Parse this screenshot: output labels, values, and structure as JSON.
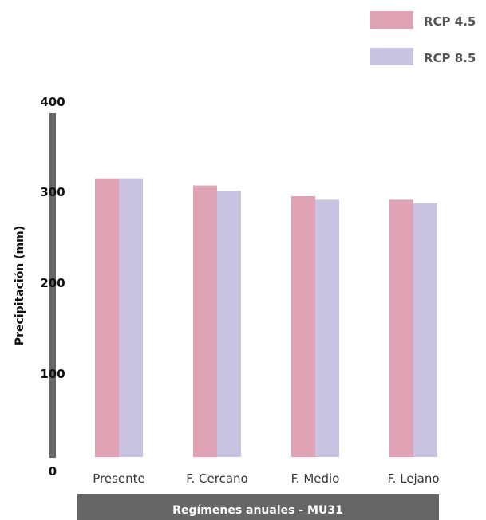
{
  "chart_data": {
    "type": "bar",
    "title": "",
    "xlabel": "Regímenes anuales - MU31",
    "ylabel": "Precipitación (mm)",
    "categories": [
      "Presente",
      "F. Cercano",
      "F. Medio",
      "F. Lejano"
    ],
    "series": [
      {
        "name": "RCP 4.5",
        "color": "#e0a3b6",
        "values": [
          314,
          306,
          294,
          290
        ]
      },
      {
        "name": "RCP 8.5",
        "color": "#c8c3e0",
        "values": [
          314,
          300,
          290,
          286
        ]
      }
    ],
    "ylim": [
      0,
      400
    ],
    "yticks": [
      0,
      100,
      200,
      300,
      400
    ],
    "grid": false,
    "legend_position": "top-right",
    "axis_color": "#666666"
  }
}
